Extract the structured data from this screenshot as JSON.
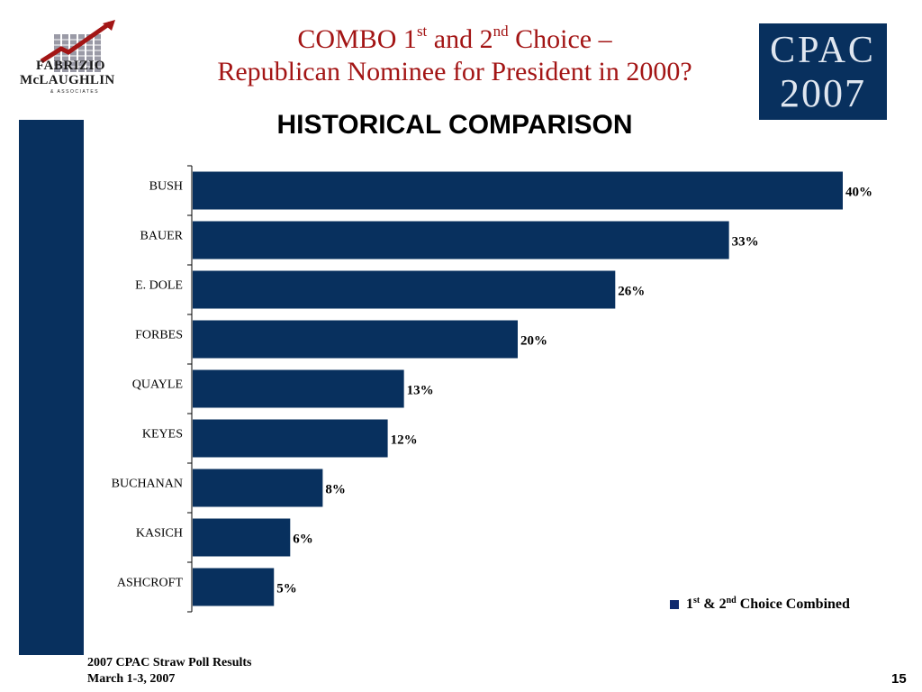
{
  "header": {
    "title_pre": "COMBO 1",
    "title_sup1": "st",
    "title_mid": " and 2",
    "title_sup2": "nd",
    "title_post": " Choice –",
    "title_line2": "Republican Nominee for President in 2000?",
    "subtitle": "HISTORICAL COMPARISON"
  },
  "logo_left": {
    "line1": "FABRIZIO",
    "line2": "McLAUGHLIN",
    "line3": "& ASSOCIATES",
    "arrow_color": "#a31515"
  },
  "logo_right": {
    "line1": "CPAC",
    "line2": "2007"
  },
  "chart_data": {
    "type": "bar",
    "orientation": "horizontal",
    "categories": [
      "BUSH",
      "BAUER",
      "E. DOLE",
      "FORBES",
      "QUAYLE",
      "KEYES",
      "BUCHANAN",
      "KASICH",
      "ASHCROFT"
    ],
    "series": [
      {
        "name": "1st & 2nd Choice Combined",
        "values": [
          40,
          33,
          26,
          20,
          13,
          12,
          8,
          6,
          5
        ]
      }
    ],
    "value_labels": [
      "40%",
      "33%",
      "26%",
      "20%",
      "13%",
      "12%",
      "8%",
      "6%",
      "5%"
    ],
    "xlim": [
      0,
      40
    ],
    "bar_color": "#08305e",
    "grid": false,
    "legend_position": "bottom-right"
  },
  "legend": {
    "pre": "1",
    "sup1": "st",
    "mid": " & 2",
    "sup2": "nd",
    "post": " Choice Combined"
  },
  "footer": {
    "line1": "2007 CPAC Straw Poll Results",
    "line2": "March 1-3, 2007",
    "page_number": "15"
  },
  "colors": {
    "title": "#a31515",
    "navy": "#08305e"
  }
}
